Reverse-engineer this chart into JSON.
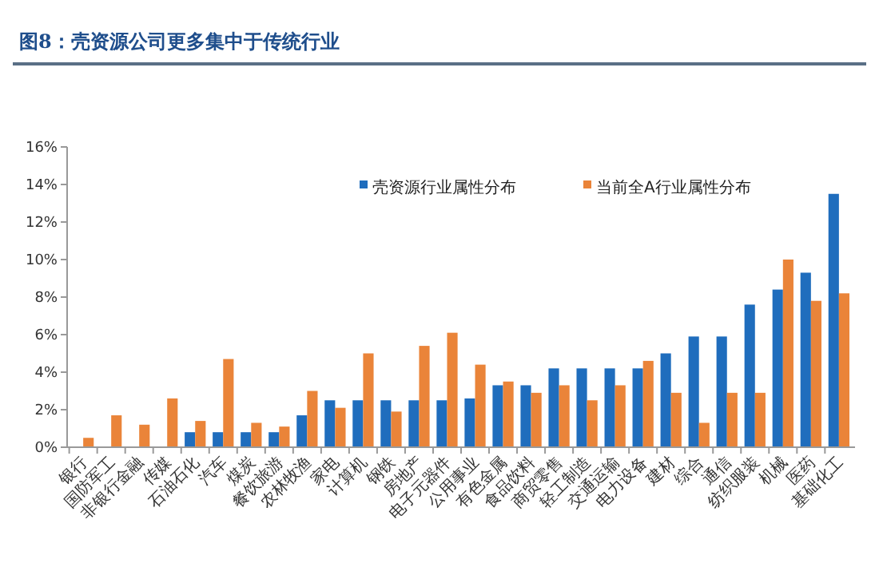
{
  "chart_data": {
    "type": "bar",
    "title": "图8：壳资源公司更多集中于传统行业",
    "categories": [
      "银行",
      "国防军工",
      "非银行金融",
      "传媒",
      "石油石化",
      "汽车",
      "煤炭",
      "餐饮旅游",
      "农林牧渔",
      "家电",
      "计算机",
      "钢铁",
      "房地产",
      "电子元器件",
      "公用事业",
      "有色金属",
      "食品饮料",
      "商贸零售",
      "轻工制造",
      "交通运输",
      "电力设备",
      "建材",
      "综合",
      "通信",
      "纺织服装",
      "机械",
      "医药",
      "基础化工"
    ],
    "series": [
      {
        "name": "壳资源行业属性分布",
        "color": "#1f6dbd",
        "values": [
          null,
          null,
          null,
          null,
          0.8,
          0.8,
          0.8,
          0.8,
          1.7,
          2.5,
          2.5,
          2.5,
          2.5,
          2.5,
          2.6,
          3.3,
          3.3,
          4.2,
          4.2,
          4.2,
          4.2,
          5.0,
          5.9,
          5.9,
          7.6,
          8.4,
          9.3,
          13.5
        ]
      },
      {
        "name": "当前全A行业属性分布",
        "color": "#ea8439",
        "values": [
          0.5,
          1.7,
          1.2,
          2.6,
          1.4,
          4.7,
          1.3,
          1.1,
          3.0,
          2.1,
          5.0,
          1.9,
          5.4,
          6.1,
          4.4,
          3.5,
          2.9,
          3.3,
          2.5,
          3.3,
          4.6,
          2.9,
          1.3,
          2.9,
          2.9,
          10.0,
          7.8,
          8.2
        ]
      }
    ],
    "ylim": [
      0,
      16
    ],
    "yticks": [
      {
        "value": 0,
        "label": "0%"
      },
      {
        "value": 2,
        "label": "2%"
      },
      {
        "value": 4,
        "label": "4%"
      },
      {
        "value": 6,
        "label": "6%"
      },
      {
        "value": 8,
        "label": "8%"
      },
      {
        "value": 10,
        "label": "10%"
      },
      {
        "value": 12,
        "label": "12%"
      },
      {
        "value": 14,
        "label": "14%"
      },
      {
        "value": 16,
        "label": "16%"
      }
    ],
    "grid": false,
    "legend": "top right"
  }
}
